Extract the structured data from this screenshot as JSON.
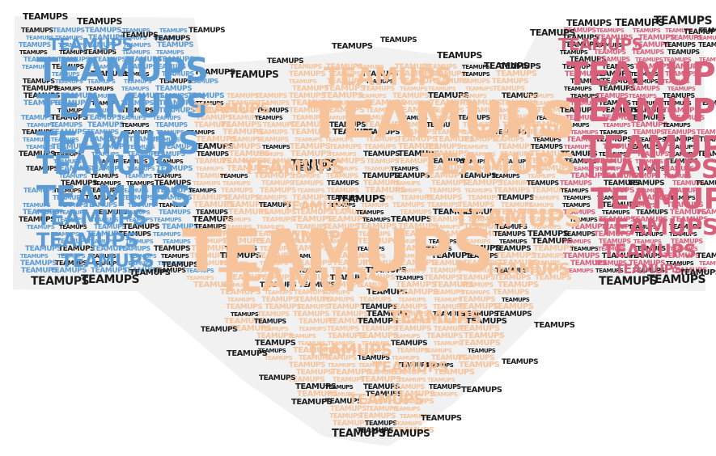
{
  "image": {
    "kind": "word-cloud",
    "shape": "three-lobed silhouette (left ear, central body, right ear)",
    "background": "#ffffff"
  },
  "word": "TEAMUPS",
  "colors": {
    "left_lobe": "#5b9bd5",
    "center_body": "#f6c39b",
    "right_lobe": "#d9607a",
    "outline_words": "#1c1c1c",
    "halo": "#f1f1f1"
  }
}
